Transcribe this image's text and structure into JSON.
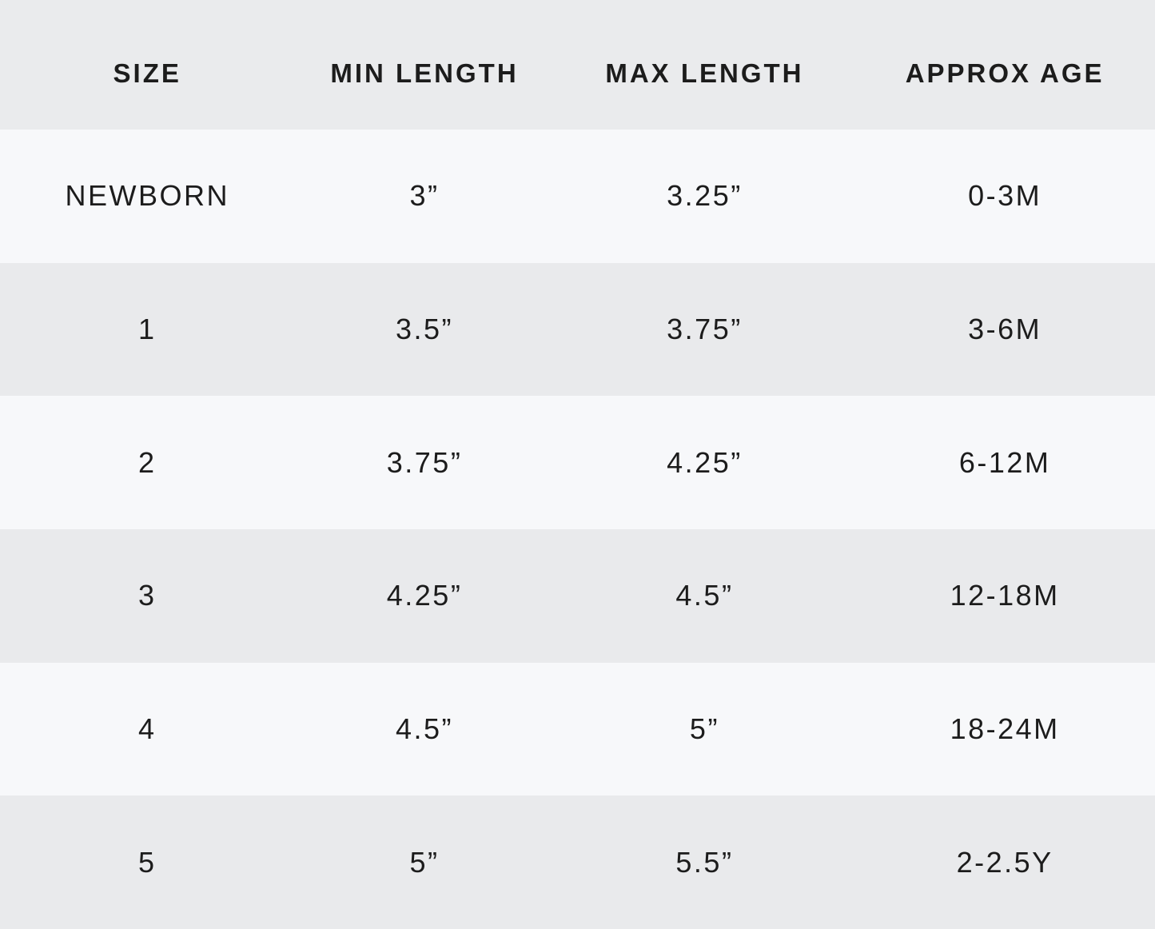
{
  "colors": {
    "header_bg": "#eaebed",
    "row_light": "#f7f8fa",
    "row_dark": "#e9eaec",
    "text": "#1c1c1c"
  },
  "chart_data": {
    "type": "table",
    "columns": [
      "SIZE",
      "MIN LENGTH",
      "MAX LENGTH",
      "APPROX AGE"
    ],
    "rows": [
      [
        "NEWBORN",
        "3”",
        "3.25”",
        "0-3M"
      ],
      [
        "1",
        "3.5”",
        "3.75”",
        "3-6M"
      ],
      [
        "2",
        "3.75”",
        "4.25”",
        "6-12M"
      ],
      [
        "3",
        "4.25”",
        "4.5”",
        "12-18M"
      ],
      [
        "4",
        "4.5”",
        "5”",
        "18-24M"
      ],
      [
        "5",
        "5”",
        "5.5”",
        "2-2.5Y"
      ]
    ],
    "layout_hints": {
      "header_position": "top",
      "row_striping": "alternating light/dark starting light",
      "text_alignment": "center"
    }
  }
}
